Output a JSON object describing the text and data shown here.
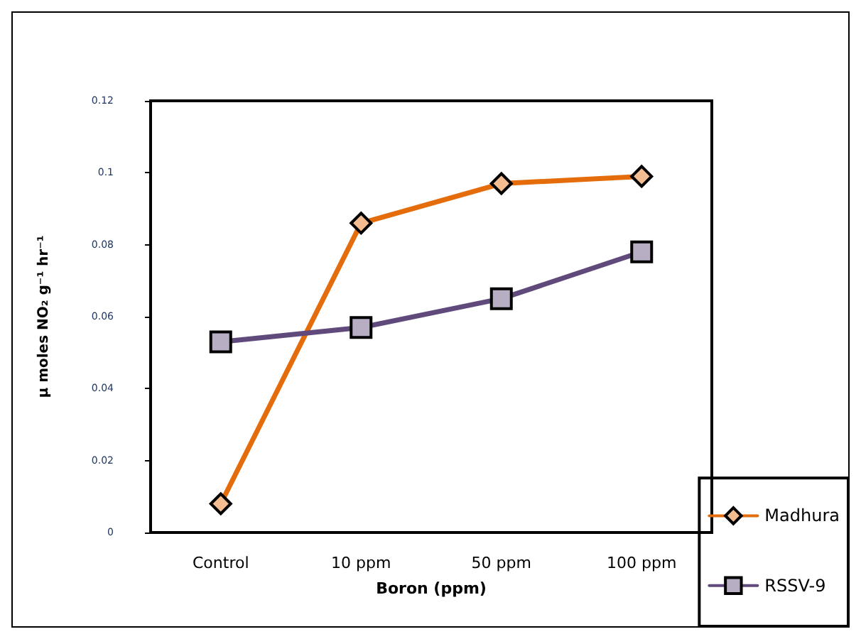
{
  "chart_data": {
    "type": "line",
    "xlabel": "Boron (ppm)",
    "ylabel": "μ moles NO₂ g⁻¹ hr⁻¹",
    "categories": [
      "Control",
      "10 ppm",
      "50 ppm",
      "100 ppm"
    ],
    "series": [
      {
        "name": "Madhura",
        "color": "#e46c0a",
        "marker": "diamond",
        "values": [
          0.008,
          0.086,
          0.097,
          0.099
        ]
      },
      {
        "name": "RSSV-9",
        "color": "#604a7b",
        "marker": "square",
        "values": [
          0.053,
          0.057,
          0.065,
          0.078
        ]
      }
    ],
    "ylim": [
      0,
      0.12
    ],
    "yticks": [
      0,
      0.02,
      0.04,
      0.06,
      0.08,
      0.1,
      0.12
    ],
    "grid": false,
    "legend": "bottom right"
  }
}
